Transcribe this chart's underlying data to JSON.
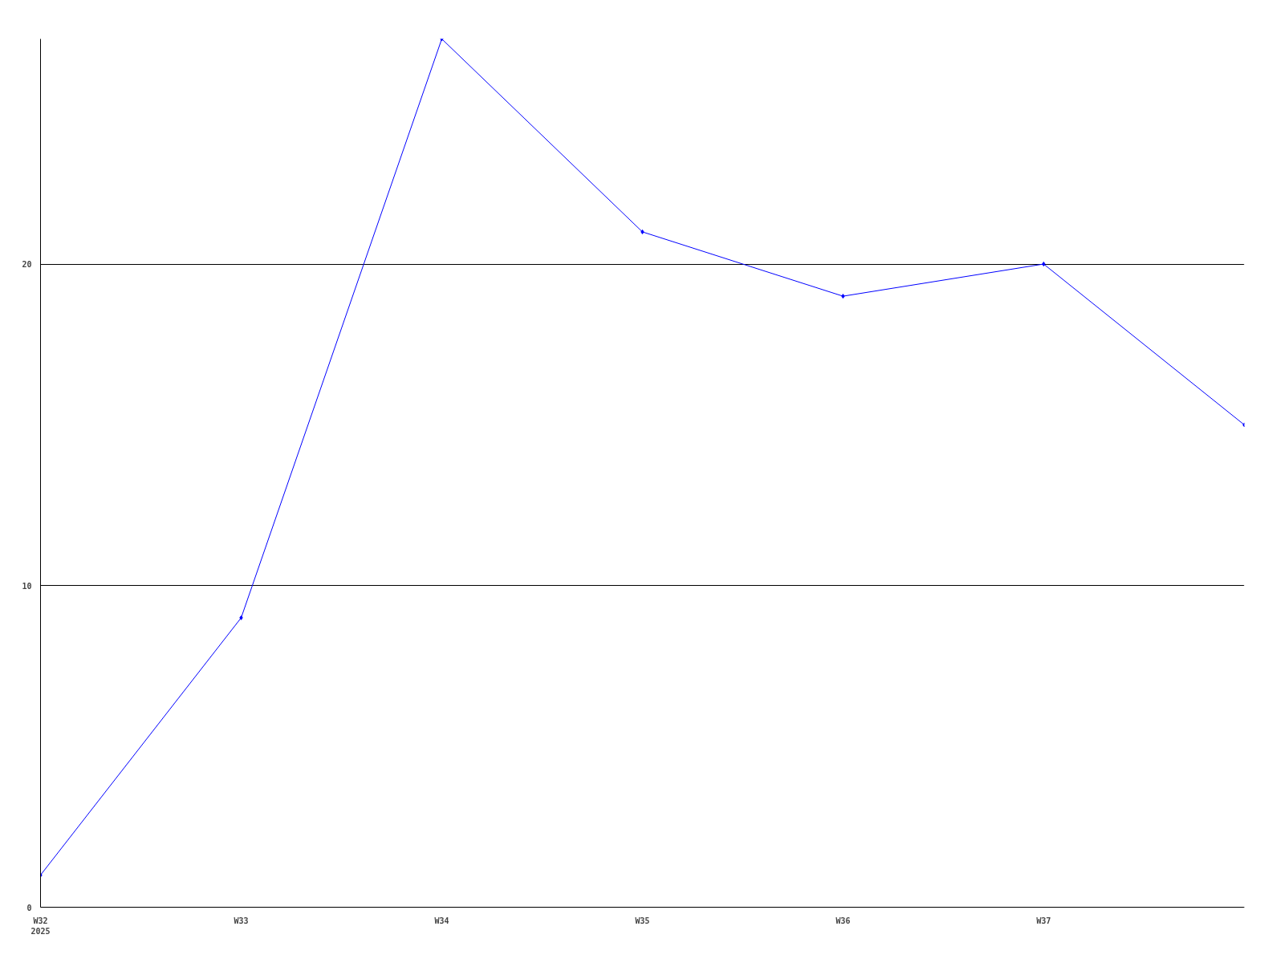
{
  "chart_data": {
    "type": "line",
    "categories": [
      "W32\n2025",
      "W33",
      "W34",
      "W35",
      "W36",
      "W37",
      null
    ],
    "series": [
      {
        "color": "#0000ff",
        "values": [
          1,
          9,
          27,
          21,
          19,
          20,
          15
        ]
      }
    ],
    "ylim": [
      0,
      27
    ],
    "yticks": [
      0,
      10,
      20
    ],
    "grid": "y",
    "marker": "diamond",
    "line_style": "solid"
  }
}
